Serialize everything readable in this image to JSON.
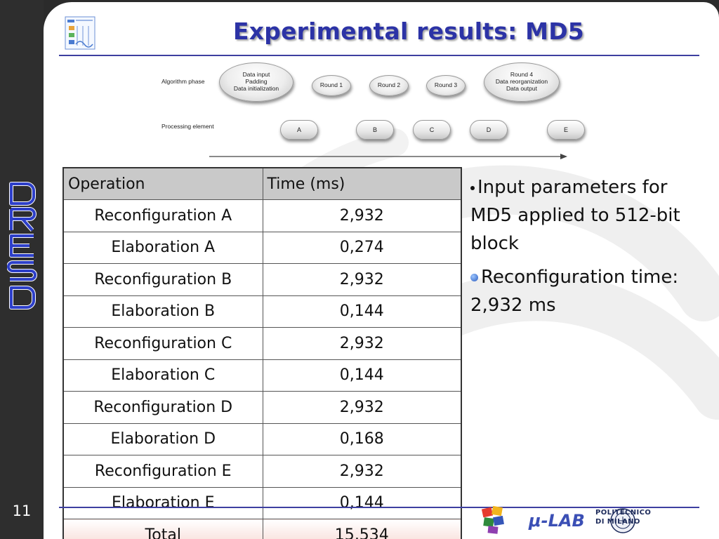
{
  "slide": {
    "title": "Experimental results: MD5",
    "number": "11",
    "side_logo": "DRESD"
  },
  "diagram": {
    "row_labels": {
      "phase": "Algorithm phase",
      "processing": "Processing element"
    },
    "phases": [
      {
        "lines": [
          "Data input",
          "Padding",
          "Data initialization"
        ]
      },
      {
        "lines": [
          "Round 1"
        ]
      },
      {
        "lines": [
          "Round 2"
        ]
      },
      {
        "lines": [
          "Round 3"
        ]
      },
      {
        "lines": [
          "Round 4",
          "Data reorganization",
          "Data output"
        ]
      }
    ],
    "elements": [
      "A",
      "B",
      "C",
      "D",
      "E"
    ]
  },
  "table": {
    "headers": [
      "Operation",
      "Time (ms)"
    ],
    "rows": [
      [
        "Reconfiguration A",
        "2,932"
      ],
      [
        "Elaboration A",
        "0,274"
      ],
      [
        "Reconfiguration B",
        "2,932"
      ],
      [
        "Elaboration B",
        "0,144"
      ],
      [
        "Reconfiguration C",
        "2,932"
      ],
      [
        "Elaboration C",
        "0,144"
      ],
      [
        "Reconfiguration D",
        "2,932"
      ],
      [
        "Elaboration D",
        "0,168"
      ],
      [
        "Reconfiguration E",
        "2,932"
      ],
      [
        "Elaboration E",
        "0,144"
      ]
    ],
    "total": [
      "Total",
      "15,534"
    ]
  },
  "bullets": [
    "Input parameters for MD5 applied to 512-bit block",
    "Reconfiguration time: 2,932 ms"
  ],
  "footer": {
    "logo_mulab": "μ-LAB",
    "polimi_line1": "POLITECNICO",
    "polimi_line2": "DI MILANO"
  },
  "colors": {
    "title": "#2c33a6",
    "rule": "#3d3fa0",
    "sidebar": "#2e2e2e",
    "side_logo": "#2d3fc8"
  }
}
